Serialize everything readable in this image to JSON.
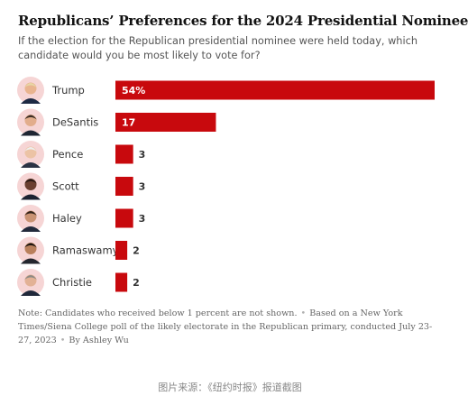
{
  "chart_data": {
    "type": "bar",
    "orientation": "horizontal",
    "title": "Republicans’ Preferences for the 2024 Presidential Nominee",
    "subtitle": "If the election for the Republican presidential nominee were held today, which candidate would you be most likely to vote for?",
    "categories": [
      "Trump",
      "DeSantis",
      "Pence",
      "Scott",
      "Haley",
      "Ramaswamy",
      "Christie"
    ],
    "values": [
      54,
      17,
      3,
      3,
      3,
      2,
      2
    ],
    "value_labels": [
      "54%",
      "17",
      "3",
      "3",
      "3",
      "2",
      "2"
    ],
    "xlim": [
      0,
      54
    ],
    "grid": false,
    "bar_color": "#c8090d",
    "avatar_icons": [
      "trump-portrait",
      "desantis-portrait",
      "pence-portrait",
      "scott-portrait",
      "haley-portrait",
      "ramaswamy-portrait",
      "christie-portrait"
    ]
  },
  "footnote": {
    "note": "Note: Candidates who received below 1 percent are not shown.",
    "source": "Based on a New York Times/Siena College poll of the likely electorate in the Republican primary, conducted July 23-27, 2023",
    "credit": "By Ashley Wu"
  },
  "caption": "图片来源：《纽约时报》报道截图",
  "colors": {
    "bar": "#c8090d",
    "avatar_background": "#f6d5d5",
    "title": "#121212",
    "text": "#555555"
  }
}
